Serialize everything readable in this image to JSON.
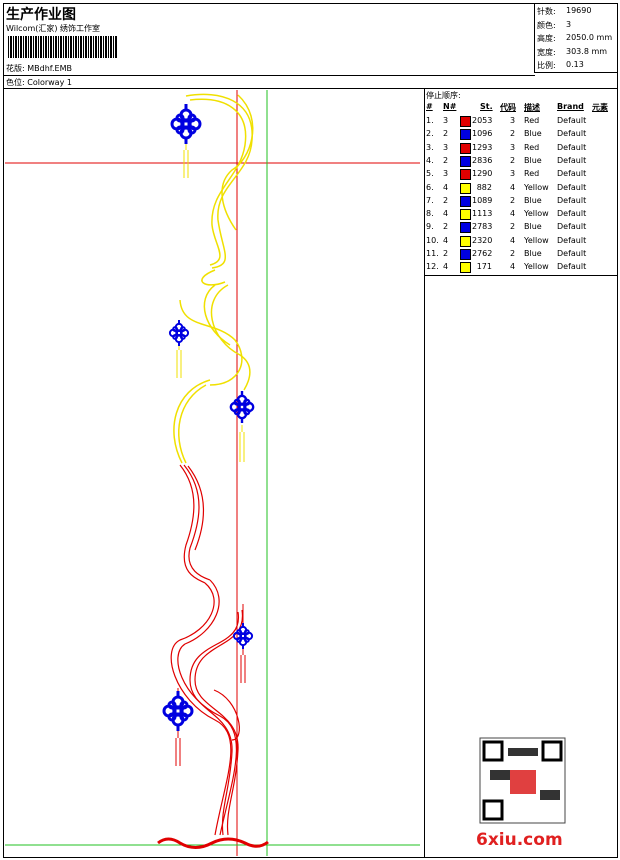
{
  "header": {
    "title": "生产作业图",
    "studio": "Wilcom(汇家) 绣饰工作室",
    "design": "花版:  MBdhf.EMB",
    "colorway": "色位:  Colorway 1",
    "info": [
      {
        "label": "针数:",
        "value": "19690"
      },
      {
        "label": "颜色:",
        "value": "3"
      },
      {
        "label": "高度:",
        "value": "2050.0 mm"
      },
      {
        "label": "宽度:",
        "value": "303.8 mm"
      },
      {
        "label": "比例:",
        "value": "0.13"
      }
    ]
  },
  "table": {
    "title": "停止顺序:",
    "columns": [
      "#",
      "N#",
      "St.",
      "代码",
      "描述",
      "Brand",
      "元素"
    ],
    "rows": [
      {
        "num": "1.",
        "n": "3",
        "color": "#e00000",
        "st": "2053",
        "code": "3",
        "desc": "Red",
        "brand": "Default"
      },
      {
        "num": "2.",
        "n": "2",
        "color": "#0000e0",
        "st": "1096",
        "code": "2",
        "desc": "Blue",
        "brand": "Default"
      },
      {
        "num": "3.",
        "n": "3",
        "color": "#e00000",
        "st": "1293",
        "code": "3",
        "desc": "Red",
        "brand": "Default"
      },
      {
        "num": "4.",
        "n": "2",
        "color": "#0000e0",
        "st": "2836",
        "code": "2",
        "desc": "Blue",
        "brand": "Default"
      },
      {
        "num": "5.",
        "n": "3",
        "color": "#e00000",
        "st": "1290",
        "code": "3",
        "desc": "Red",
        "brand": "Default"
      },
      {
        "num": "6.",
        "n": "4",
        "color": "#ffff00",
        "st": "882",
        "code": "4",
        "desc": "Yellow",
        "brand": "Default"
      },
      {
        "num": "7.",
        "n": "2",
        "color": "#0000e0",
        "st": "1089",
        "code": "2",
        "desc": "Blue",
        "brand": "Default"
      },
      {
        "num": "8.",
        "n": "4",
        "color": "#ffff00",
        "st": "1113",
        "code": "4",
        "desc": "Yellow",
        "brand": "Default"
      },
      {
        "num": "9.",
        "n": "2",
        "color": "#0000e0",
        "st": "2783",
        "code": "2",
        "desc": "Blue",
        "brand": "Default"
      },
      {
        "num": "10.",
        "n": "4",
        "color": "#ffff00",
        "st": "2320",
        "code": "4",
        "desc": "Yellow",
        "brand": "Default"
      },
      {
        "num": "11.",
        "n": "2",
        "color": "#0000e0",
        "st": "2762",
        "code": "2",
        "desc": "Blue",
        "brand": "Default"
      },
      {
        "num": "12.",
        "n": "4",
        "color": "#ffff00",
        "st": "171",
        "code": "4",
        "desc": "Yellow",
        "brand": "Default"
      }
    ]
  },
  "watermark": "6xiu.com"
}
